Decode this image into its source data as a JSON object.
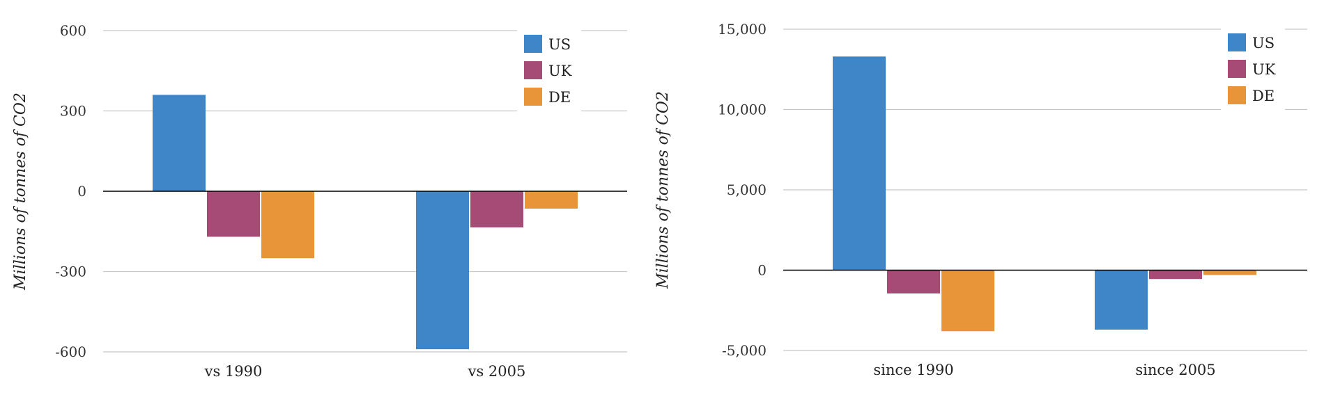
{
  "chart_data": [
    {
      "type": "bar",
      "title": "",
      "xlabel": "",
      "ylabel": "Millions of tonnes of CO2",
      "categories": [
        "vs 1990",
        "vs 2005"
      ],
      "series": [
        {
          "name": "US",
          "color": "#3f86c9",
          "values": [
            360,
            -590
          ]
        },
        {
          "name": "UK",
          "color": "#a64b76",
          "values": [
            -170,
            -135
          ]
        },
        {
          "name": "DE",
          "color": "#e8953a",
          "values": [
            -250,
            -65
          ]
        }
      ],
      "ylim": [
        -600,
        600
      ],
      "yticks": [
        600,
        300,
        0,
        -300,
        -600
      ],
      "ytick_labels": [
        "600",
        "300",
        "0",
        "-300",
        "-600"
      ],
      "grid": true,
      "legend_position": "top-right"
    },
    {
      "type": "bar",
      "title": "",
      "xlabel": "",
      "ylabel": "Millions of tonnes of CO2",
      "categories": [
        "since 1990",
        "since 2005"
      ],
      "series": [
        {
          "name": "US",
          "color": "#3f86c9",
          "values": [
            13300,
            -3700
          ]
        },
        {
          "name": "UK",
          "color": "#a64b76",
          "values": [
            -1450,
            -550
          ]
        },
        {
          "name": "DE",
          "color": "#e8953a",
          "values": [
            -3800,
            -300
          ]
        }
      ],
      "ylim": [
        -5000,
        15000
      ],
      "yticks": [
        15000,
        10000,
        5000,
        0,
        -5000
      ],
      "ytick_labels": [
        "15,000",
        "10,000",
        "5,000",
        "0",
        "-5,000"
      ],
      "grid": true,
      "legend_position": "top-right"
    }
  ]
}
